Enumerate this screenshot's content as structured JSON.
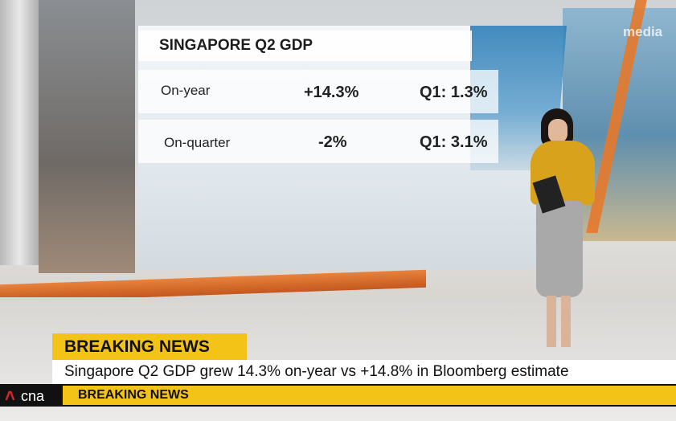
{
  "graphic": {
    "title": "SINGAPORE Q2 GDP",
    "rows": [
      [
        "On-year",
        "+14.3%",
        "Q1: 1.3%"
      ],
      [
        "On-quarter",
        "-2%",
        "Q1: 3.1%"
      ]
    ]
  },
  "watermark": "media",
  "lower_third": {
    "tag": "BREAKING NEWS",
    "headline": "Singapore Q2 GDP grew 14.3% on-year vs +14.8% in Bloomberg estimate",
    "logo": "cna",
    "ticker": "BREAKING NEWS"
  }
}
